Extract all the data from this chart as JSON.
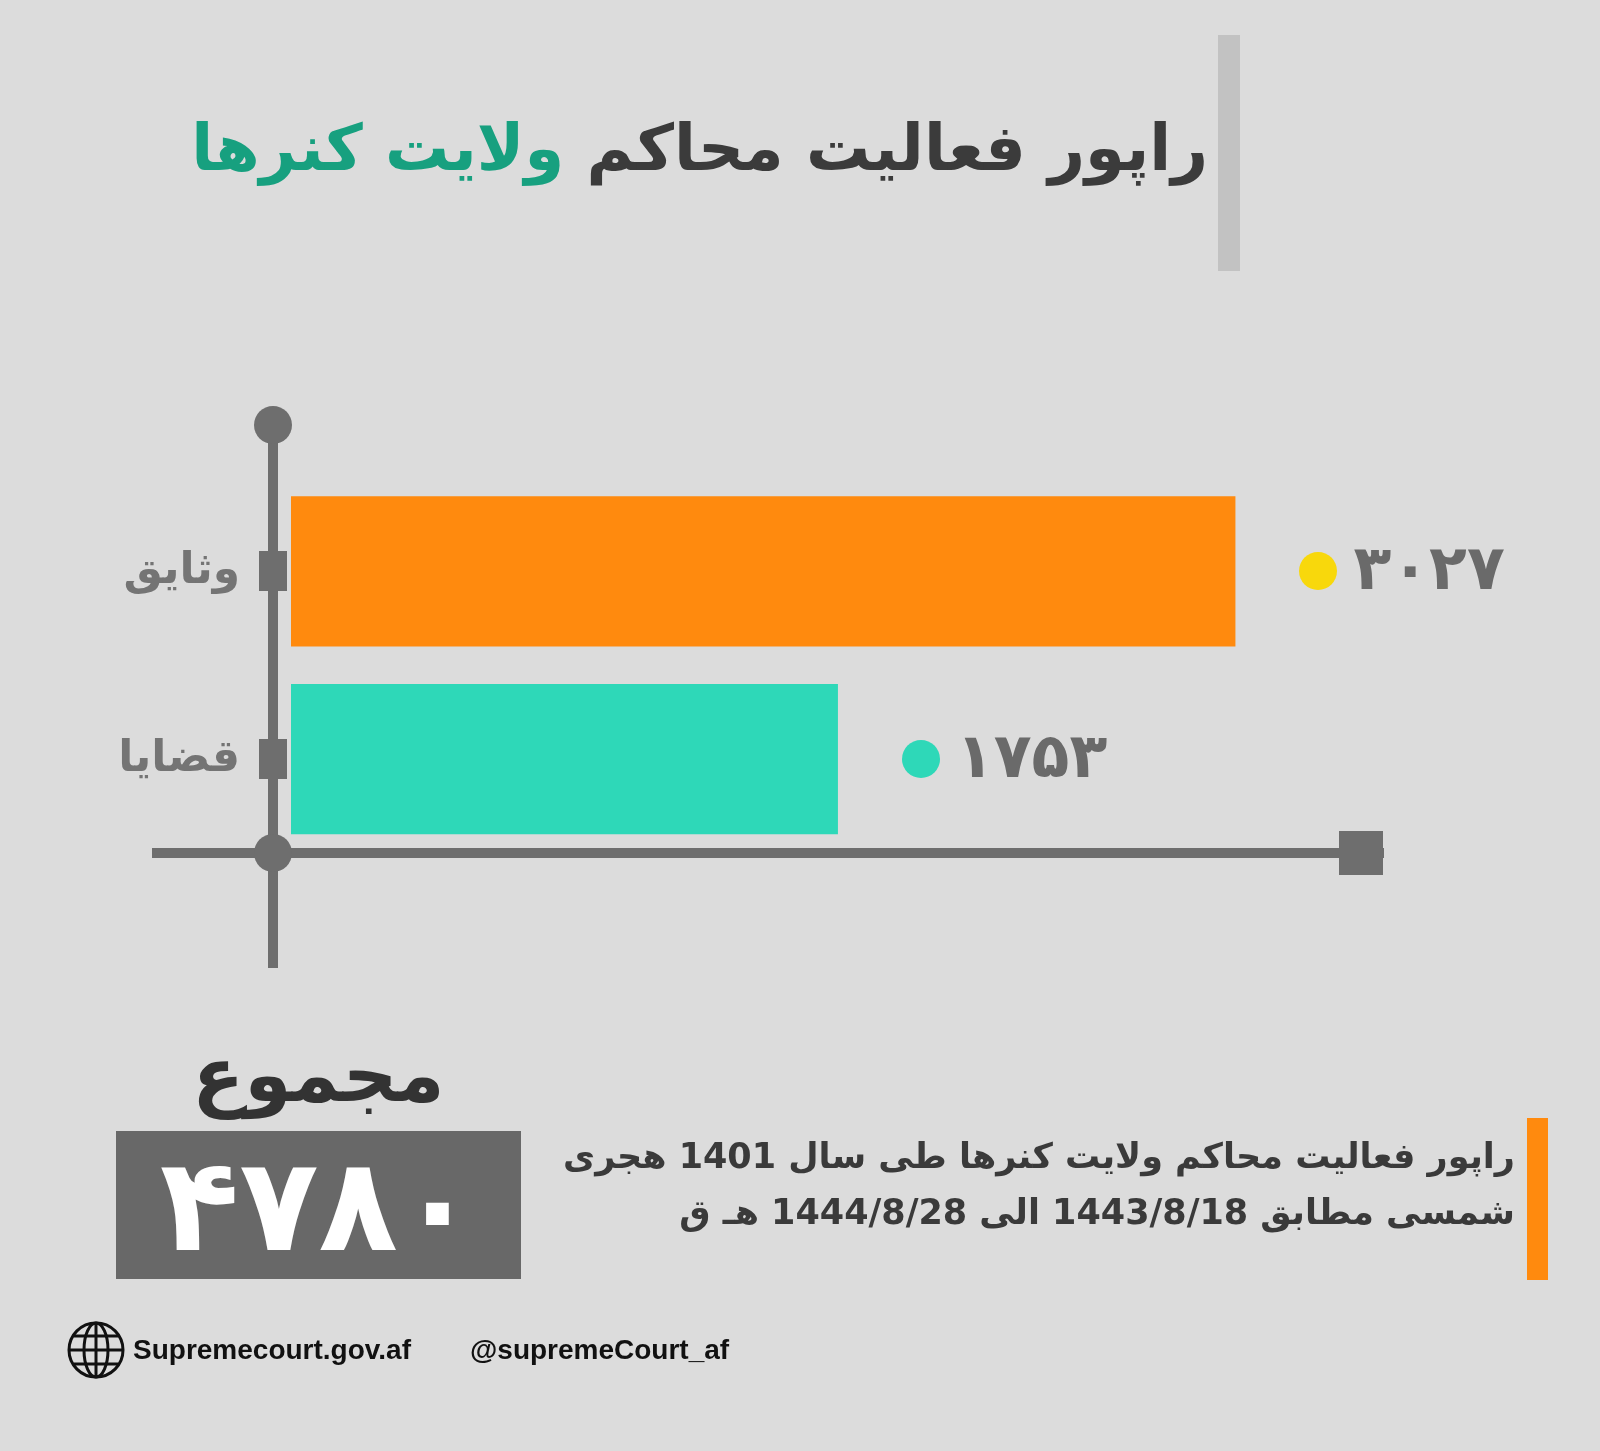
{
  "chart_data": {
    "type": "bar",
    "orientation": "horizontal",
    "title": "راپور فعالیت محاکم ولایت کنرها",
    "categories": [
      "وثایق",
      "قضایا"
    ],
    "values": [
      3027,
      1753
    ],
    "colors": [
      "#ff8a0e",
      "#2ed8b8"
    ],
    "value_labels": [
      "۳۰۲۷",
      "۱۷۵۳"
    ],
    "annotations": [
      "مجموع",
      "۴۷۸۰",
      "راپور فعالیت محاکم ولایت کنرها طی سال 1401 هجری شمسی مطابق 1443/8/18 الی 1444/8/28 هـ ق",
      "Supremecourt.gov.af",
      "@supremeCourt_af"
    ]
  }
}
